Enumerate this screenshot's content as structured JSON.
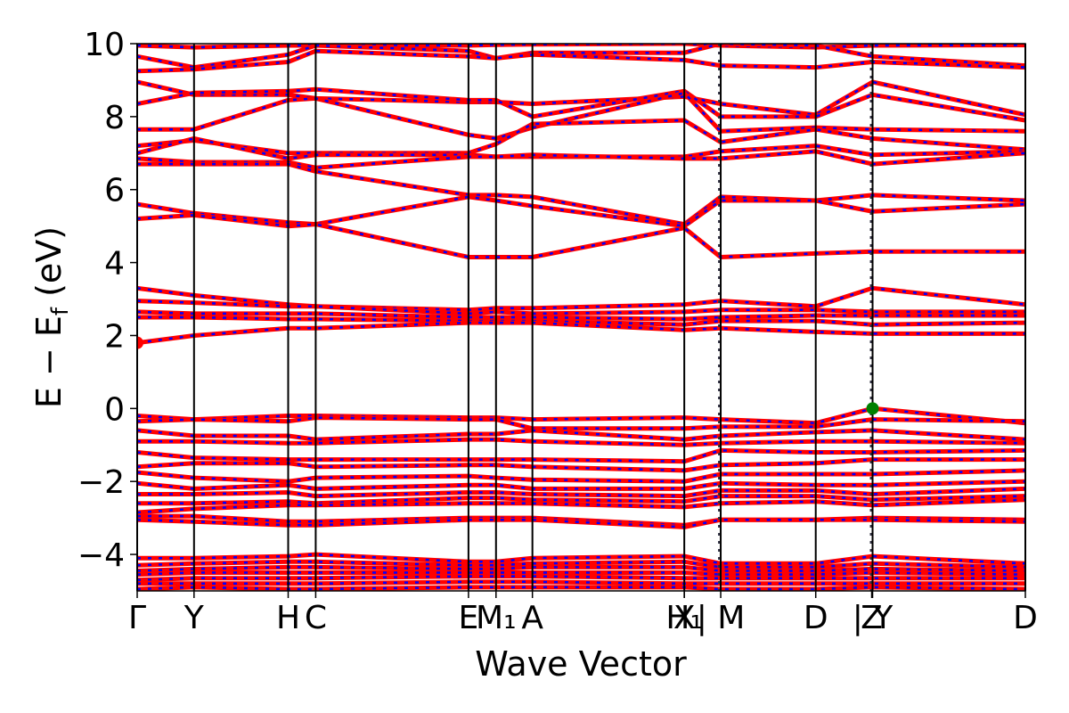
{
  "chart_data": {
    "type": "line",
    "xlabel": "Wave Vector",
    "ylabel": "E − E_f (eV)",
    "ylabel_parts": {
      "main": "E − E",
      "sub": "f",
      "unit": " (eV)"
    },
    "ylim": [
      -5,
      10
    ],
    "xlim": [
      0,
      1
    ],
    "yticks": [
      -4,
      -2,
      0,
      2,
      4,
      6,
      8,
      10
    ],
    "ytick_labels": [
      "−4",
      "−2",
      "0",
      "2",
      "4",
      "6",
      "8",
      "10"
    ],
    "grid": false,
    "colors": {
      "band_primary": "#ff0000",
      "band_secondary": "#0000ff",
      "vbm_marker": "#008000",
      "cbm_marker": "#ff0000"
    },
    "kpoints": [
      {
        "label": "Γ",
        "x": 0.0
      },
      {
        "label": "Y",
        "x": 0.064
      },
      {
        "label": "H",
        "x": 0.17
      },
      {
        "label": "C",
        "x": 0.201
      },
      {
        "label": "E",
        "x": 0.373
      },
      {
        "label": "M₁",
        "x": 0.404
      },
      {
        "label": "A",
        "x": 0.445
      },
      {
        "label": "X",
        "x": 0.616
      },
      {
        "label": "H₁",
        "x": 0.616
      },
      {
        "label": "| M",
        "x": 0.657
      },
      {
        "label": "D",
        "x": 0.764
      },
      {
        "label": "Z",
        "x": 0.827
      },
      {
        "label": "| Y",
        "x": 0.828
      },
      {
        "label": "D",
        "x": 1.0
      }
    ],
    "vlines": [
      0.0,
      0.064,
      0.17,
      0.201,
      0.373,
      0.404,
      0.445,
      0.616,
      0.657,
      0.764,
      0.828,
      1.0
    ],
    "segment_breaks": [
      0.655,
      0.826
    ],
    "series": [
      {
        "y": [
          9.95,
          9.9,
          9.95,
          9.95,
          9.95,
          9.97,
          9.98,
          10.0,
          9.95,
          9.9,
          9.95,
          9.96
        ]
      },
      {
        "y": [
          9.65,
          9.35,
          9.7,
          9.95,
          9.8,
          9.6,
          9.75,
          9.75,
          10.0,
          9.95,
          9.65,
          9.4
        ]
      },
      {
        "y": [
          9.25,
          9.3,
          9.5,
          9.8,
          9.65,
          9.6,
          9.7,
          9.55,
          9.4,
          9.35,
          9.5,
          9.35
        ]
      },
      {
        "y": [
          8.95,
          8.6,
          8.6,
          8.5,
          8.4,
          8.4,
          8.35,
          8.55,
          8.35,
          8.05,
          8.95,
          8.05
        ]
      },
      {
        "y": [
          8.35,
          8.65,
          8.7,
          8.75,
          8.45,
          8.45,
          8.0,
          8.7,
          8.0,
          8.0,
          8.6,
          7.9
        ]
      },
      {
        "y": [
          7.65,
          7.65,
          8.45,
          8.5,
          7.5,
          7.4,
          7.7,
          8.65,
          7.6,
          7.7,
          7.65,
          7.6
        ]
      },
      {
        "y": [
          7.2,
          7.35,
          7.0,
          7.0,
          7.0,
          7.25,
          7.8,
          7.9,
          7.3,
          7.65,
          7.4,
          7.1
        ]
      },
      {
        "y": [
          7.0,
          7.4,
          6.85,
          6.95,
          6.95,
          6.9,
          6.9,
          6.9,
          7.05,
          7.2,
          6.95,
          7.05
        ]
      },
      {
        "y": [
          6.85,
          6.75,
          6.75,
          6.6,
          6.9,
          6.9,
          6.95,
          6.85,
          6.85,
          7.05,
          6.7,
          7.0
        ]
      },
      {
        "y": [
          6.7,
          6.7,
          6.7,
          6.5,
          5.85,
          5.85,
          5.8,
          5.05,
          5.8,
          5.7,
          5.85,
          5.7
        ]
      },
      {
        "y": [
          5.6,
          5.35,
          5.1,
          5.05,
          5.8,
          5.7,
          5.55,
          5.0,
          5.7,
          5.7,
          5.4,
          5.6
        ]
      },
      {
        "y": [
          5.2,
          5.3,
          5.0,
          5.05,
          4.15,
          4.15,
          4.15,
          4.95,
          4.15,
          4.25,
          4.3,
          4.3
        ]
      },
      {
        "y": [
          3.3,
          3.1,
          2.85,
          2.8,
          2.7,
          2.75,
          2.75,
          2.85,
          2.95,
          2.8,
          3.3,
          2.85
        ]
      },
      {
        "y": [
          2.95,
          2.9,
          2.8,
          2.8,
          2.6,
          2.65,
          2.6,
          2.65,
          2.7,
          2.7,
          2.65,
          2.65
        ]
      },
      {
        "y": [
          2.65,
          2.6,
          2.6,
          2.6,
          2.5,
          2.5,
          2.5,
          2.45,
          2.5,
          2.55,
          2.55,
          2.55
        ]
      },
      {
        "y": [
          2.5,
          2.5,
          2.45,
          2.45,
          2.4,
          2.4,
          2.4,
          2.3,
          2.4,
          2.4,
          2.3,
          2.35
        ]
      },
      {
        "y": [
          1.8,
          2.0,
          2.2,
          2.2,
          2.35,
          2.35,
          2.35,
          2.15,
          2.2,
          2.1,
          2.05,
          2.05
        ]
      },
      {
        "y": [
          -0.2,
          -0.3,
          -0.2,
          -0.2,
          -0.25,
          -0.25,
          -0.3,
          -0.25,
          -0.3,
          -0.4,
          0.0,
          -0.4
        ]
      },
      {
        "y": [
          -0.35,
          -0.3,
          -0.35,
          -0.25,
          -0.3,
          -0.3,
          -0.55,
          -0.55,
          -0.5,
          -0.5,
          -0.3,
          -0.35
        ]
      },
      {
        "y": [
          -0.6,
          -0.75,
          -0.75,
          -0.85,
          -0.7,
          -0.7,
          -0.6,
          -0.85,
          -0.75,
          -0.65,
          -0.6,
          -0.85
        ]
      },
      {
        "y": [
          -0.9,
          -0.9,
          -0.95,
          -0.95,
          -0.85,
          -0.85,
          -0.9,
          -1.0,
          -0.95,
          -0.9,
          -0.9,
          -0.95
        ]
      },
      {
        "y": [
          -1.2,
          -1.35,
          -1.4,
          -1.4,
          -1.4,
          -1.4,
          -1.4,
          -1.45,
          -1.15,
          -1.2,
          -1.2,
          -1.15
        ]
      },
      {
        "y": [
          -1.6,
          -1.5,
          -1.5,
          -1.6,
          -1.55,
          -1.55,
          -1.6,
          -1.7,
          -1.55,
          -1.5,
          -1.4,
          -1.4
        ]
      },
      {
        "y": [
          -1.75,
          -1.9,
          -2.0,
          -1.9,
          -1.85,
          -1.9,
          -1.95,
          -2.0,
          -1.8,
          -1.8,
          -1.8,
          -1.7
        ]
      },
      {
        "y": [
          -2.05,
          -2.2,
          -2.1,
          -2.2,
          -2.1,
          -2.1,
          -2.2,
          -2.2,
          -2.05,
          -2.1,
          -2.1,
          -2.0
        ]
      },
      {
        "y": [
          -2.35,
          -2.35,
          -2.3,
          -2.4,
          -2.3,
          -2.3,
          -2.35,
          -2.4,
          -2.25,
          -2.25,
          -2.35,
          -2.2
        ]
      },
      {
        "y": [
          -2.6,
          -2.6,
          -2.55,
          -2.6,
          -2.45,
          -2.45,
          -2.5,
          -2.55,
          -2.4,
          -2.4,
          -2.5,
          -2.4
        ]
      },
      {
        "y": [
          -2.85,
          -2.75,
          -2.65,
          -2.65,
          -2.6,
          -2.6,
          -2.6,
          -2.7,
          -2.6,
          -2.55,
          -2.65,
          -2.5
        ]
      },
      {
        "y": [
          -2.95,
          -2.95,
          -3.1,
          -3.1,
          -3.0,
          -3.0,
          -3.0,
          -3.2,
          -3.05,
          -3.05,
          -3.0,
          -3.05
        ]
      },
      {
        "y": [
          -3.05,
          -3.1,
          -3.2,
          -3.2,
          -3.05,
          -3.05,
          -3.05,
          -3.25,
          -3.05,
          -3.05,
          -3.05,
          -3.1
        ]
      },
      {
        "y": [
          -4.1,
          -4.1,
          -4.05,
          -4.0,
          -4.2,
          -4.2,
          -4.1,
          -4.05,
          -4.25,
          -4.25,
          -4.05,
          -4.25
        ]
      },
      {
        "y": [
          -4.3,
          -4.25,
          -4.2,
          -4.2,
          -4.3,
          -4.3,
          -4.25,
          -4.2,
          -4.35,
          -4.35,
          -4.25,
          -4.35
        ]
      },
      {
        "y": [
          -4.45,
          -4.4,
          -4.35,
          -4.35,
          -4.4,
          -4.4,
          -4.35,
          -4.35,
          -4.45,
          -4.45,
          -4.4,
          -4.45
        ]
      },
      {
        "y": [
          -4.55,
          -4.5,
          -4.5,
          -4.5,
          -4.5,
          -4.5,
          -4.5,
          -4.5,
          -4.55,
          -4.55,
          -4.5,
          -4.55
        ]
      },
      {
        "y": [
          -4.7,
          -4.65,
          -4.65,
          -4.65,
          -4.6,
          -4.6,
          -4.6,
          -4.65,
          -4.65,
          -4.65,
          -4.65,
          -4.65
        ]
      },
      {
        "y": [
          -4.8,
          -4.8,
          -4.8,
          -4.8,
          -4.75,
          -4.75,
          -4.75,
          -4.8,
          -4.8,
          -4.8,
          -4.8,
          -4.8
        ]
      },
      {
        "y": [
          -4.95,
          -4.9,
          -4.95,
          -4.95,
          -4.9,
          -4.9,
          -4.9,
          -4.9,
          -4.95,
          -4.95,
          -4.9,
          -4.95
        ]
      }
    ],
    "markers": [
      {
        "name": "cbm",
        "x": 0.0,
        "y": 1.8,
        "color": "#ff0000"
      },
      {
        "name": "vbm",
        "x": 0.828,
        "y": 0.0,
        "color": "#008000"
      }
    ]
  }
}
